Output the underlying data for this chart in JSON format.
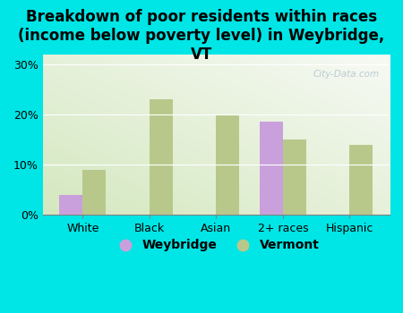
{
  "title": "Breakdown of poor residents within races\n(income below poverty level) in Weybridge,\nVT",
  "categories": [
    "White",
    "Black",
    "Asian",
    "2+ races",
    "Hispanic"
  ],
  "weybridge": [
    4.0,
    0,
    0,
    18.5,
    0
  ],
  "vermont": [
    9.0,
    23.0,
    20.0,
    15.0,
    14.0
  ],
  "weybridge_color": "#c9a0dc",
  "vermont_color": "#b8c88a",
  "background_outer": "#00e5e5",
  "ylim": [
    0,
    32
  ],
  "yticks": [
    0,
    10,
    20,
    30
  ],
  "ytick_labels": [
    "0%",
    "10%",
    "20%",
    "30%"
  ],
  "bar_width": 0.35,
  "title_fontsize": 12,
  "tick_fontsize": 9,
  "legend_fontsize": 10,
  "watermark": "City-Data.com"
}
